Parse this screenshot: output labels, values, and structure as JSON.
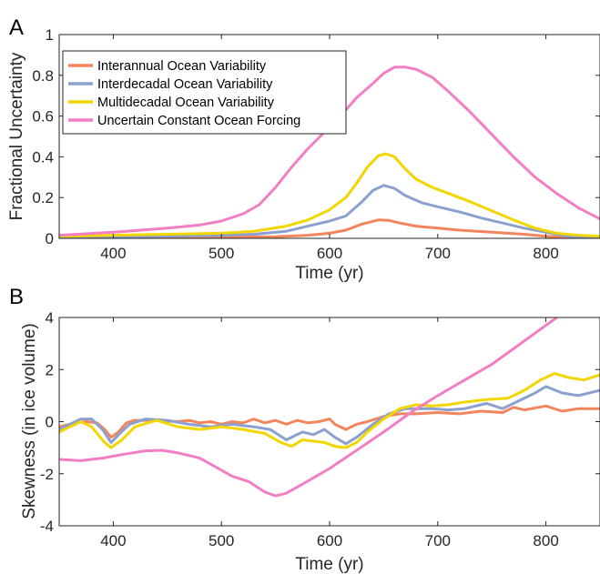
{
  "colors": {
    "interannual": "#F4845C",
    "interdecadal": "#8BA0CF",
    "multidecadal": "#F2D600",
    "constant": "#F27FC3"
  },
  "chart_data": [
    {
      "panel_label": "A",
      "type": "line",
      "xlabel": "Time (yr)",
      "ylabel": "Fractional Uncertainty",
      "xlim": [
        350,
        850
      ],
      "ylim": [
        0,
        1
      ],
      "xticks": [
        400,
        500,
        600,
        700,
        800
      ],
      "yticks": [
        0,
        0.2,
        0.4,
        0.6,
        0.8,
        1
      ],
      "ytick_labels": [
        "0",
        "0.2",
        "0.4",
        "0.6",
        "0.8",
        "1"
      ],
      "legend_position": "top-left",
      "grid": false,
      "series": [
        {
          "name": "Interannual Ocean Variability",
          "color_key": "interannual",
          "points": [
            [
              350,
              0.002
            ],
            [
              400,
              0.003
            ],
            [
              450,
              0.004
            ],
            [
              500,
              0.005
            ],
            [
              550,
              0.008
            ],
            [
              580,
              0.015
            ],
            [
              600,
              0.025
            ],
            [
              615,
              0.04
            ],
            [
              630,
              0.07
            ],
            [
              645,
              0.09
            ],
            [
              655,
              0.088
            ],
            [
              665,
              0.075
            ],
            [
              680,
              0.06
            ],
            [
              700,
              0.05
            ],
            [
              720,
              0.04
            ],
            [
              750,
              0.03
            ],
            [
              780,
              0.02
            ],
            [
              800,
              0.01
            ],
            [
              820,
              0.005
            ],
            [
              850,
              0.002
            ]
          ]
        },
        {
          "name": "Interdecadal Ocean Variability",
          "color_key": "interdecadal",
          "points": [
            [
              350,
              0.005
            ],
            [
              400,
              0.008
            ],
            [
              450,
              0.01
            ],
            [
              500,
              0.015
            ],
            [
              530,
              0.02
            ],
            [
              560,
              0.035
            ],
            [
              580,
              0.06
            ],
            [
              600,
              0.085
            ],
            [
              615,
              0.11
            ],
            [
              630,
              0.18
            ],
            [
              640,
              0.235
            ],
            [
              650,
              0.26
            ],
            [
              660,
              0.245
            ],
            [
              670,
              0.21
            ],
            [
              685,
              0.175
            ],
            [
              700,
              0.155
            ],
            [
              720,
              0.13
            ],
            [
              740,
              0.1
            ],
            [
              760,
              0.075
            ],
            [
              780,
              0.05
            ],
            [
              800,
              0.03
            ],
            [
              820,
              0.01
            ],
            [
              850,
              0.0
            ]
          ]
        },
        {
          "name": "Multidecadal Ocean Variability",
          "color_key": "multidecadal",
          "points": [
            [
              350,
              0.01
            ],
            [
              400,
              0.015
            ],
            [
              450,
              0.02
            ],
            [
              500,
              0.025
            ],
            [
              530,
              0.035
            ],
            [
              560,
              0.06
            ],
            [
              580,
              0.09
            ],
            [
              600,
              0.14
            ],
            [
              615,
              0.2
            ],
            [
              625,
              0.27
            ],
            [
              635,
              0.35
            ],
            [
              645,
              0.405
            ],
            [
              652,
              0.415
            ],
            [
              660,
              0.4
            ],
            [
              670,
              0.34
            ],
            [
              680,
              0.29
            ],
            [
              695,
              0.25
            ],
            [
              710,
              0.22
            ],
            [
              730,
              0.18
            ],
            [
              750,
              0.135
            ],
            [
              770,
              0.09
            ],
            [
              790,
              0.05
            ],
            [
              810,
              0.025
            ],
            [
              830,
              0.015
            ],
            [
              850,
              0.01
            ]
          ]
        },
        {
          "name": "Uncertain Constant Ocean Forcing",
          "color_key": "constant",
          "points": [
            [
              350,
              0.015
            ],
            [
              400,
              0.03
            ],
            [
              450,
              0.05
            ],
            [
              480,
              0.065
            ],
            [
              500,
              0.085
            ],
            [
              520,
              0.12
            ],
            [
              535,
              0.165
            ],
            [
              550,
              0.25
            ],
            [
              565,
              0.35
            ],
            [
              580,
              0.44
            ],
            [
              595,
              0.52
            ],
            [
              610,
              0.6
            ],
            [
              625,
              0.69
            ],
            [
              640,
              0.76
            ],
            [
              650,
              0.81
            ],
            [
              660,
              0.84
            ],
            [
              670,
              0.84
            ],
            [
              680,
              0.83
            ],
            [
              695,
              0.79
            ],
            [
              710,
              0.72
            ],
            [
              730,
              0.62
            ],
            [
              750,
              0.51
            ],
            [
              770,
              0.4
            ],
            [
              790,
              0.3
            ],
            [
              810,
              0.22
            ],
            [
              830,
              0.15
            ],
            [
              850,
              0.095
            ]
          ]
        }
      ]
    },
    {
      "panel_label": "B",
      "type": "line",
      "xlabel": "Time (yr)",
      "ylabel": "Skewness (in ice volume)",
      "xlim": [
        350,
        850
      ],
      "ylim": [
        -4,
        4
      ],
      "xticks": [
        400,
        500,
        600,
        700,
        800
      ],
      "yticks": [
        -4,
        -2,
        0,
        2,
        4
      ],
      "ytick_labels": [
        "-4",
        "-2",
        "0",
        "2",
        "4"
      ],
      "grid": false,
      "series": [
        {
          "name": "Interannual Ocean Variability",
          "color_key": "interannual",
          "points": [
            [
              350,
              -0.2
            ],
            [
              365,
              -0.05
            ],
            [
              375,
              0.0
            ],
            [
              385,
              -0.05
            ],
            [
              392,
              -0.3
            ],
            [
              398,
              -0.6
            ],
            [
              405,
              -0.4
            ],
            [
              412,
              -0.05
            ],
            [
              420,
              0.05
            ],
            [
              440,
              0.05
            ],
            [
              460,
              0.0
            ],
            [
              470,
              0.05
            ],
            [
              480,
              -0.05
            ],
            [
              490,
              0.0
            ],
            [
              500,
              -0.1
            ],
            [
              510,
              0.0
            ],
            [
              520,
              -0.05
            ],
            [
              530,
              0.1
            ],
            [
              540,
              -0.05
            ],
            [
              550,
              0.05
            ],
            [
              560,
              -0.1
            ],
            [
              570,
              0.05
            ],
            [
              580,
              -0.05
            ],
            [
              590,
              0.0
            ],
            [
              600,
              0.1
            ],
            [
              605,
              -0.1
            ],
            [
              615,
              -0.3
            ],
            [
              625,
              -0.1
            ],
            [
              635,
              0.0
            ],
            [
              650,
              0.2
            ],
            [
              665,
              0.3
            ],
            [
              680,
              0.3
            ],
            [
              700,
              0.35
            ],
            [
              720,
              0.3
            ],
            [
              740,
              0.4
            ],
            [
              760,
              0.35
            ],
            [
              770,
              0.55
            ],
            [
              780,
              0.45
            ],
            [
              800,
              0.6
            ],
            [
              815,
              0.4
            ],
            [
              830,
              0.5
            ],
            [
              850,
              0.5
            ]
          ]
        },
        {
          "name": "Interdecadal Ocean Variability",
          "color_key": "interdecadal",
          "points": [
            [
              350,
              -0.3
            ],
            [
              360,
              -0.1
            ],
            [
              370,
              0.1
            ],
            [
              380,
              0.1
            ],
            [
              390,
              -0.3
            ],
            [
              398,
              -0.8
            ],
            [
              405,
              -0.5
            ],
            [
              415,
              -0.1
            ],
            [
              430,
              0.1
            ],
            [
              450,
              0.05
            ],
            [
              470,
              -0.1
            ],
            [
              490,
              -0.2
            ],
            [
              510,
              -0.1
            ],
            [
              530,
              -0.2
            ],
            [
              545,
              -0.3
            ],
            [
              560,
              -0.7
            ],
            [
              575,
              -0.4
            ],
            [
              585,
              -0.5
            ],
            [
              595,
              -0.3
            ],
            [
              605,
              -0.6
            ],
            [
              615,
              -0.85
            ],
            [
              625,
              -0.6
            ],
            [
              640,
              -0.1
            ],
            [
              655,
              0.3
            ],
            [
              670,
              0.5
            ],
            [
              680,
              0.5
            ],
            [
              695,
              0.5
            ],
            [
              710,
              0.45
            ],
            [
              725,
              0.5
            ],
            [
              745,
              0.7
            ],
            [
              760,
              0.5
            ],
            [
              775,
              0.8
            ],
            [
              790,
              1.1
            ],
            [
              800,
              1.35
            ],
            [
              815,
              1.1
            ],
            [
              830,
              1.0
            ],
            [
              850,
              1.2
            ]
          ]
        },
        {
          "name": "Multidecadal Ocean Variability",
          "color_key": "multidecadal",
          "points": [
            [
              350,
              -0.4
            ],
            [
              360,
              -0.2
            ],
            [
              370,
              0.0
            ],
            [
              380,
              -0.2
            ],
            [
              392,
              -0.8
            ],
            [
              398,
              -1.0
            ],
            [
              408,
              -0.7
            ],
            [
              420,
              -0.2
            ],
            [
              440,
              0.05
            ],
            [
              460,
              -0.2
            ],
            [
              480,
              -0.3
            ],
            [
              500,
              -0.2
            ],
            [
              520,
              -0.3
            ],
            [
              540,
              -0.45
            ],
            [
              555,
              -0.8
            ],
            [
              565,
              -0.95
            ],
            [
              575,
              -0.7
            ],
            [
              585,
              -0.75
            ],
            [
              595,
              -0.8
            ],
            [
              605,
              -0.95
            ],
            [
              615,
              -1.0
            ],
            [
              625,
              -0.8
            ],
            [
              635,
              -0.4
            ],
            [
              650,
              0.1
            ],
            [
              665,
              0.5
            ],
            [
              680,
              0.65
            ],
            [
              695,
              0.6
            ],
            [
              710,
              0.65
            ],
            [
              725,
              0.75
            ],
            [
              745,
              0.85
            ],
            [
              765,
              0.9
            ],
            [
              780,
              1.2
            ],
            [
              795,
              1.6
            ],
            [
              808,
              1.85
            ],
            [
              820,
              1.7
            ],
            [
              835,
              1.6
            ],
            [
              850,
              1.8
            ]
          ]
        },
        {
          "name": "Uncertain Constant Ocean Forcing",
          "color_key": "constant",
          "points": [
            [
              350,
              -1.45
            ],
            [
              370,
              -1.5
            ],
            [
              390,
              -1.4
            ],
            [
              410,
              -1.25
            ],
            [
              430,
              -1.12
            ],
            [
              445,
              -1.1
            ],
            [
              460,
              -1.2
            ],
            [
              480,
              -1.4
            ],
            [
              495,
              -1.75
            ],
            [
              510,
              -2.1
            ],
            [
              525,
              -2.3
            ],
            [
              540,
              -2.7
            ],
            [
              550,
              -2.85
            ],
            [
              560,
              -2.75
            ],
            [
              575,
              -2.4
            ],
            [
              600,
              -1.8
            ],
            [
              625,
              -1.1
            ],
            [
              650,
              -0.4
            ],
            [
              675,
              0.35
            ],
            [
              700,
              1.0
            ],
            [
              725,
              1.6
            ],
            [
              750,
              2.2
            ],
            [
              775,
              2.95
            ],
            [
              795,
              3.55
            ],
            [
              810,
              4.0
            ]
          ]
        }
      ]
    }
  ]
}
